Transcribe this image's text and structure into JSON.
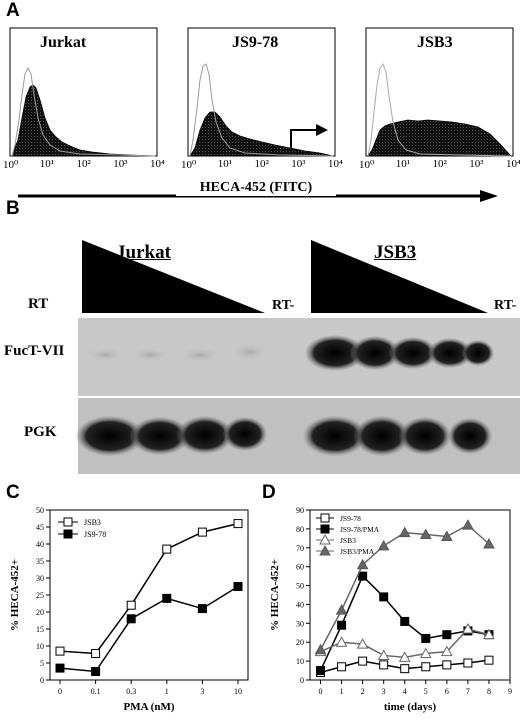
{
  "panels": [
    "A",
    "B",
    "C",
    "D"
  ],
  "panelA": {
    "histograms": [
      {
        "title": "Jurkat",
        "ticks": [
          "10⁰",
          "10¹",
          "10²",
          "10³",
          "10⁴"
        ]
      },
      {
        "title": "JS9-78",
        "ticks": [
          "10⁰",
          "10¹",
          "10²",
          "10³",
          "10⁴"
        ]
      },
      {
        "title": "JSB3",
        "ticks": [
          "10⁰",
          "10¹",
          "10²",
          "10³",
          "10⁴"
        ]
      }
    ],
    "axis_label": "HECA-452  (FITC)"
  },
  "panelB": {
    "group1": "Jurkat",
    "group2": "JSB3",
    "rt_label": "RT",
    "rt_minus": "RT-",
    "rows": [
      "FucT-VII",
      "PGK"
    ]
  },
  "chart_data": [
    {
      "id": "C",
      "type": "line",
      "categories": [
        "0",
        "0.1",
        "0.3",
        "1",
        "3",
        "10"
      ],
      "series": [
        {
          "name": "JSB3",
          "marker": "open-square",
          "values": [
            8.5,
            7.8,
            22,
            38.5,
            43.5,
            46
          ]
        },
        {
          "name": "JS9-78",
          "marker": "filled-square",
          "values": [
            3.5,
            2.5,
            18,
            24,
            21,
            27.5
          ]
        }
      ],
      "xlabel": "PMA (nM)",
      "ylabel": "% HECA-452+",
      "ylim": [
        0,
        50
      ],
      "yticks": [
        0,
        5,
        10,
        15,
        20,
        25,
        30,
        35,
        40,
        45,
        50
      ],
      "legend_position": "top-left"
    },
    {
      "id": "D",
      "type": "line",
      "x": [
        0,
        1,
        2,
        3,
        4,
        5,
        6,
        7,
        8
      ],
      "xticks": [
        0,
        1,
        2,
        3,
        4,
        5,
        6,
        7,
        8,
        9
      ],
      "series": [
        {
          "name": "JS9-78",
          "marker": "open-square",
          "values": [
            4,
            7,
            10,
            8,
            6,
            7,
            8,
            9,
            10.5
          ]
        },
        {
          "name": "JS9-78/PMA",
          "marker": "filled-square",
          "values": [
            5,
            29,
            55,
            44,
            31,
            22,
            24,
            26,
            24
          ]
        },
        {
          "name": "JSB3",
          "marker": "open-triangle",
          "values": [
            15,
            20,
            19,
            13,
            12,
            14,
            15,
            27,
            24
          ]
        },
        {
          "name": "JSB3/PMA",
          "marker": "filled-triangle",
          "values": [
            16,
            37,
            61,
            71,
            78,
            77,
            76,
            82,
            72
          ]
        }
      ],
      "xlabel": "time (days)",
      "ylabel": "% HECA-452+",
      "ylim": [
        0,
        90
      ],
      "yticks": [
        0,
        10,
        20,
        30,
        40,
        50,
        60,
        70,
        80,
        90
      ],
      "xlim": [
        -0.5,
        9
      ],
      "legend_position": "top-left"
    }
  ]
}
